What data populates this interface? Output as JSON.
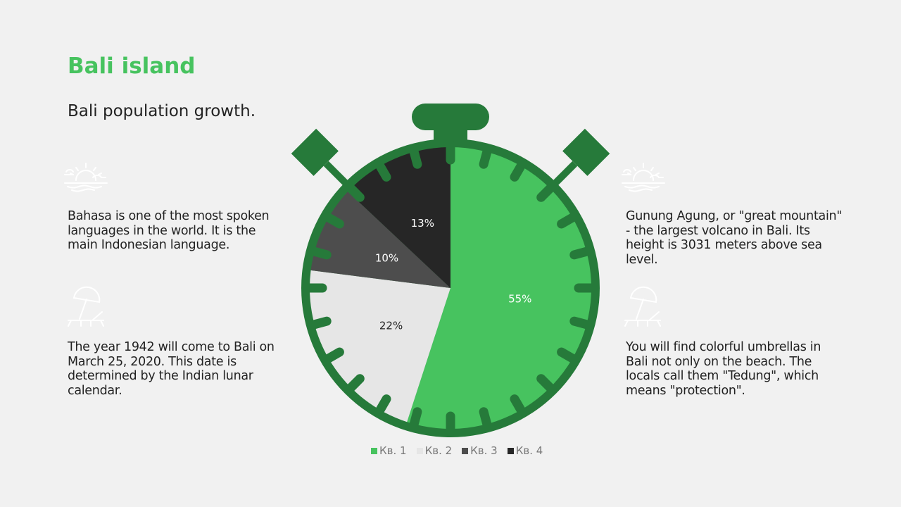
{
  "title": "Bali island",
  "subtitle": "Bali population growth.",
  "texts": {
    "left1": "Bahasa is one of the most spoken languages in the world. It is the main Indonesian language.",
    "left2": "The year 1942 will come to Bali on March 25, 2020. This date is determined by the Indian lunar calendar.",
    "right1": "Gunung Agung, or \"great mountain\" - the largest volcano in Bali. Its height is 3031 meters above sea level.",
    "right2": "You will find colorful umbrellas in Bali not only on the beach. The locals call them \"Tedung\", which means \"protection\"."
  },
  "icons": [
    "sunset-icon",
    "beach-umbrella-icon"
  ],
  "chart_data": {
    "type": "pie",
    "categories": [
      "Кв. 1",
      "Кв. 2",
      "Кв. 3",
      "Кв. 4"
    ],
    "values": [
      55,
      22,
      10,
      13
    ],
    "labels": [
      "55%",
      "22%",
      "10%",
      "13%"
    ],
    "colors": [
      "#47c35f",
      "#e6e6e6",
      "#4d4d4d",
      "#262626"
    ],
    "label_colors": [
      "#ffffff",
      "#222222",
      "#ffffff",
      "#ffffff"
    ],
    "legend": "bottom",
    "frame_color": "#267a3a"
  }
}
